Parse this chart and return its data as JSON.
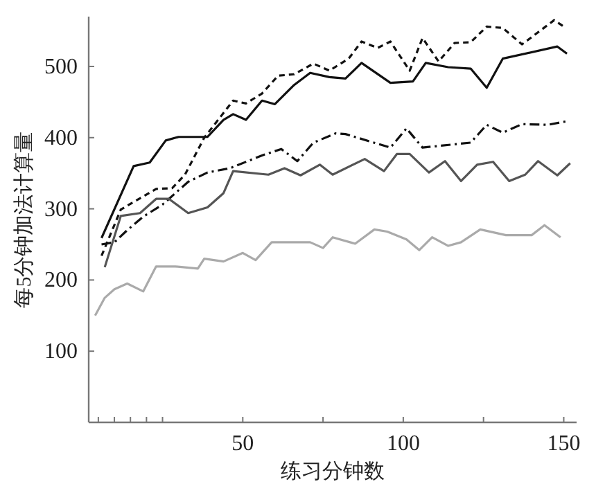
{
  "chart_data": {
    "type": "line",
    "xlabel": "练习分钟数",
    "ylabel": "每5分钟加法计算量",
    "xlim": [
      2,
      154
    ],
    "ylim": [
      0,
      570
    ],
    "xticks": [
      {
        "value": 5,
        "label": null
      },
      {
        "value": 10,
        "label": null
      },
      {
        "value": 15,
        "label": null
      },
      {
        "value": 20,
        "label": null
      },
      {
        "value": 25,
        "label": null
      },
      50,
      {
        "value": 75,
        "label": null
      },
      100,
      {
        "value": 125,
        "label": null
      },
      150
    ],
    "yticks": [
      100,
      200,
      300,
      400,
      500
    ],
    "grid": false,
    "marker": "none",
    "series": [
      {
        "color": "#111111",
        "line_style": "solid",
        "x": [
          6,
          16,
          21,
          26,
          30,
          39,
          44,
          47,
          51,
          56,
          60,
          66,
          71,
          77,
          82,
          87,
          96,
          103,
          107,
          114,
          121,
          126,
          131,
          148,
          151
        ],
        "values": [
          259,
          360,
          365,
          396,
          401,
          401,
          425,
          433,
          425,
          452,
          447,
          474,
          491,
          485,
          483,
          505,
          477,
          479,
          505,
          499,
          497,
          470,
          511,
          528,
          518
        ]
      },
      {
        "color": "#111111",
        "line_style": "dashed",
        "x": [
          6,
          12,
          23,
          28,
          32,
          38,
          47,
          51,
          56,
          61,
          66,
          72,
          77,
          78,
          83,
          87,
          92,
          96,
          102,
          106,
          111,
          116,
          121,
          126,
          131,
          137,
          147,
          150
        ],
        "values": [
          234,
          299,
          328,
          329,
          348,
          400,
          452,
          448,
          462,
          487,
          489,
          504,
          494,
          497,
          511,
          535,
          526,
          535,
          494,
          540,
          507,
          533,
          534,
          556,
          554,
          531,
          565,
          556
        ]
      },
      {
        "color": "#111111",
        "line_style": "dashdot",
        "x": [
          6,
          10,
          14,
          19,
          25,
          33,
          39,
          46,
          56,
          62,
          67,
          72,
          79,
          82,
          96,
          101,
          106,
          121,
          126,
          131,
          137,
          145,
          151
        ],
        "values": [
          250,
          253,
          270,
          289,
          306,
          338,
          351,
          357,
          375,
          384,
          367,
          393,
          406,
          405,
          386,
          413,
          386,
          393,
          418,
          407,
          419,
          418,
          423
        ]
      },
      {
        "color": "#555555",
        "line_style": "solid",
        "x": [
          7,
          12,
          18,
          23,
          27,
          33,
          39,
          44,
          47,
          58,
          63,
          68,
          74,
          78,
          88,
          94,
          98,
          102,
          108,
          113,
          118,
          123,
          128,
          133,
          138,
          142,
          148,
          152
        ],
        "values": [
          218,
          290,
          294,
          314,
          314,
          294,
          302,
          322,
          353,
          348,
          357,
          347,
          362,
          348,
          370,
          353,
          377,
          377,
          351,
          367,
          339,
          362,
          366,
          339,
          348,
          367,
          347,
          364
        ]
      },
      {
        "color": "#aaaaaa",
        "line_style": "solid",
        "x": [
          4,
          7,
          10,
          14,
          19,
          23,
          29,
          36,
          38,
          44,
          50,
          54,
          59,
          71,
          75,
          78,
          85,
          91,
          95,
          101,
          105,
          109,
          114,
          118,
          124,
          132,
          140,
          144,
          149
        ],
        "values": [
          150,
          175,
          187,
          195,
          184,
          219,
          219,
          216,
          230,
          226,
          238,
          228,
          253,
          253,
          245,
          260,
          251,
          271,
          268,
          257,
          242,
          260,
          248,
          253,
          271,
          263,
          263,
          277,
          260
        ]
      }
    ]
  }
}
